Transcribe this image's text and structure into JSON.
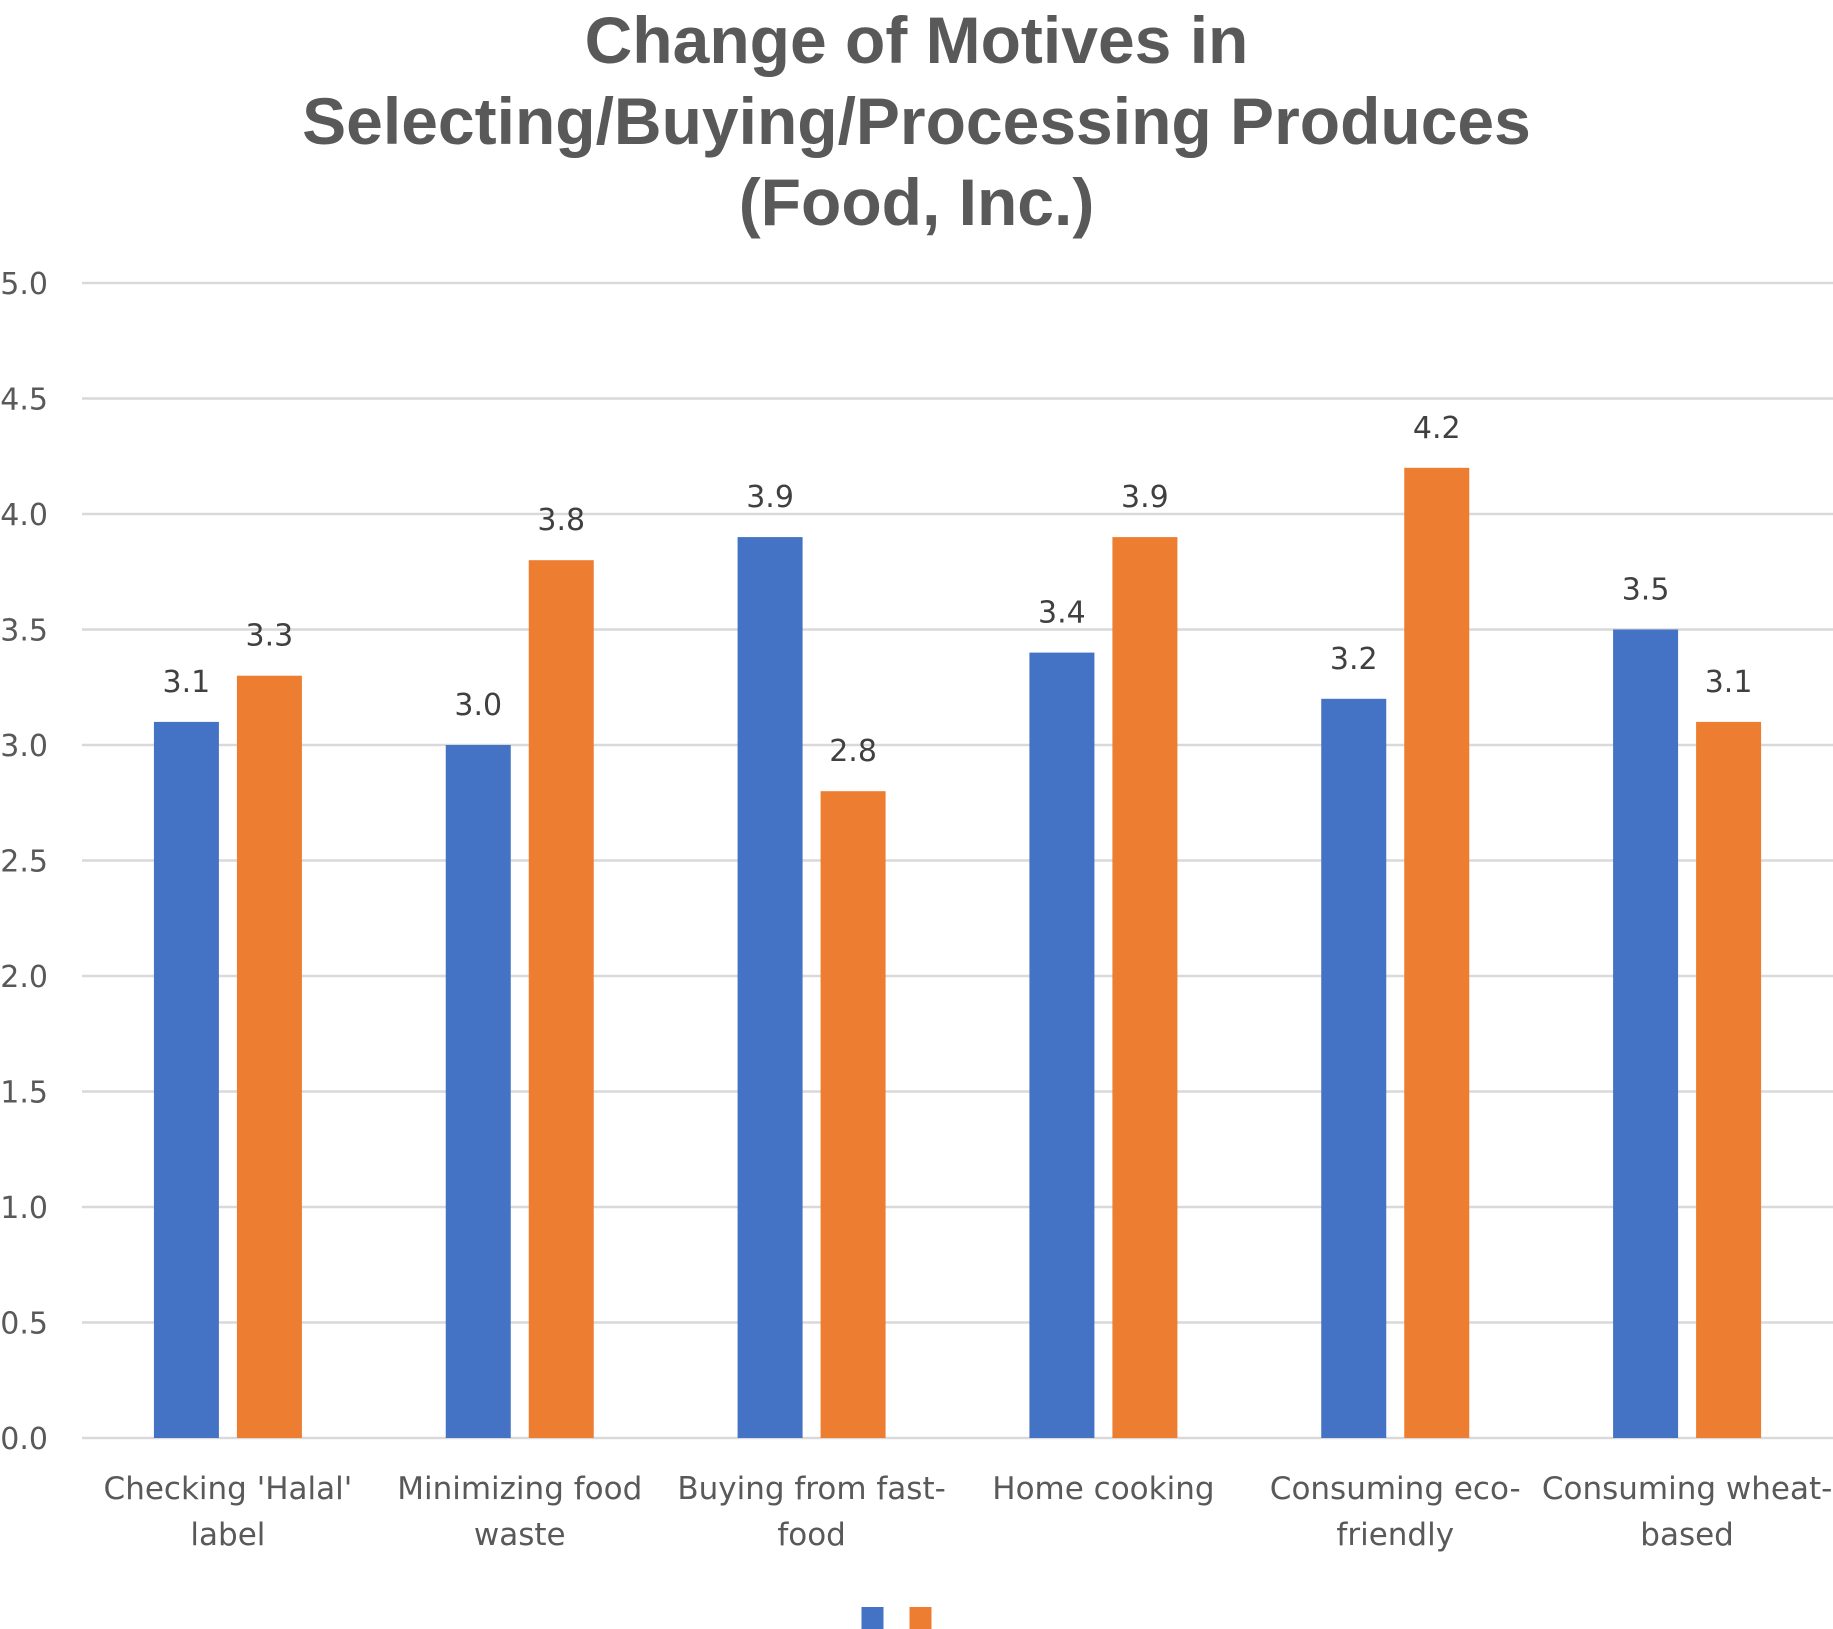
{
  "chart_data": {
    "type": "bar",
    "title_lines": [
      "Change of Motives in",
      "Selecting/Buying/Processing Produces",
      "(Food, Inc.)"
    ],
    "categories": [
      [
        "Checking 'Halal'",
        "label"
      ],
      [
        "Minimizing food",
        "waste"
      ],
      [
        "Buying from fast-",
        "food"
      ],
      [
        "Home cooking"
      ],
      [
        "Consuming eco-",
        "friendly"
      ],
      [
        "Consuming wheat-",
        "based"
      ]
    ],
    "series": [
      {
        "name": "",
        "color": "#4472c4",
        "values": [
          3.1,
          3.0,
          3.9,
          3.4,
          3.2,
          3.5
        ]
      },
      {
        "name": "",
        "color": "#ed7d31",
        "values": [
          3.3,
          3.8,
          2.8,
          3.9,
          4.2,
          3.1
        ]
      }
    ],
    "yticks": [
      "0.0",
      "0.5",
      "1.0",
      "1.5",
      "2.0",
      "2.5",
      "3.0",
      "3.5",
      "4.0",
      "4.5",
      "5.0"
    ],
    "ylim": [
      0,
      5
    ],
    "xlabel": "",
    "ylabel": "",
    "grid": true,
    "legend": "bottom-center"
  }
}
